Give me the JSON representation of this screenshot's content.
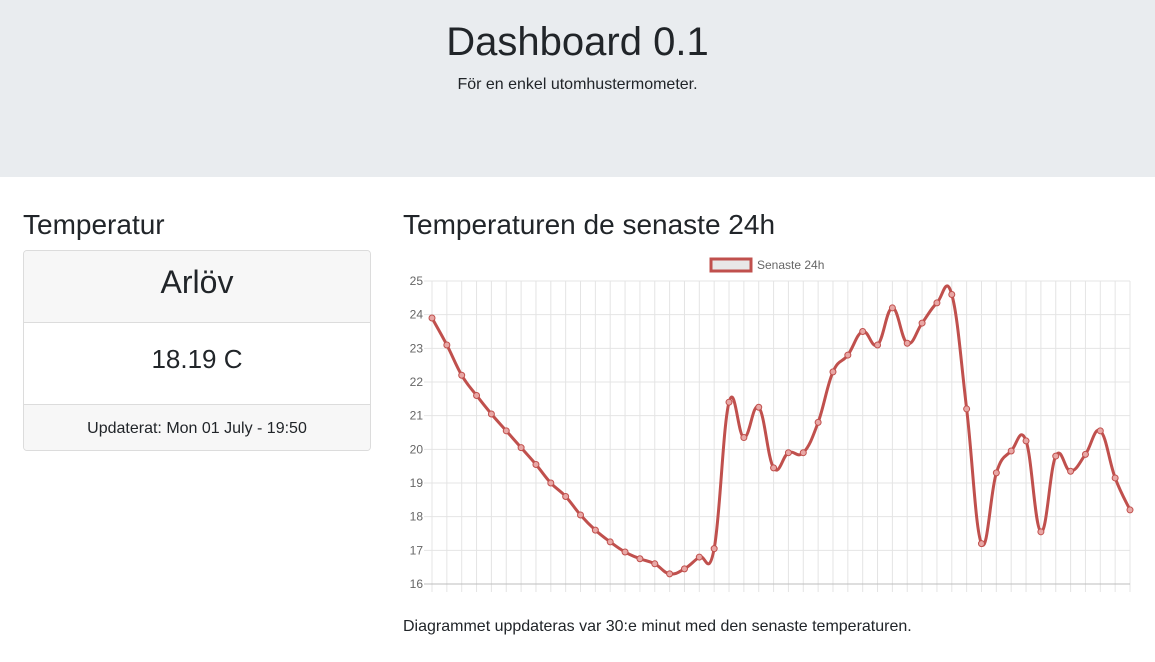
{
  "header": {
    "title": "Dashboard 0.1",
    "subtitle": "För en enkel utomhustermometer."
  },
  "left": {
    "title": "Temperatur",
    "card": {
      "location": "Arlöv",
      "temperature": "18.19 C",
      "updated": "Updaterat: Mon 01 July - 19:50"
    }
  },
  "right": {
    "title": "Temperaturen de senaste 24h",
    "note": "Diagrammet uppdateras var 30:e minut med den senaste temperaturen."
  },
  "colors": {
    "line": "#c0504d",
    "point": "#e8a7a5",
    "grid": "#e4e4e4",
    "jumbotron_bg": "#e9ecef"
  },
  "chart_data": {
    "type": "line",
    "ylim": [
      16,
      25
    ],
    "y_ticks": [
      16,
      17,
      18,
      19,
      20,
      21,
      22,
      23,
      24,
      25
    ],
    "legend": "top",
    "grid": true,
    "series": [
      {
        "name": "Senaste 24h",
        "values": [
          23.9,
          23.1,
          22.2,
          21.6,
          21.05,
          20.55,
          20.05,
          19.55,
          19.0,
          18.6,
          18.05,
          17.6,
          17.25,
          16.95,
          16.75,
          16.6,
          16.3,
          16.45,
          16.8,
          17.05,
          21.4,
          20.35,
          21.25,
          19.45,
          19.9,
          19.9,
          20.8,
          22.3,
          22.8,
          23.5,
          23.1,
          24.2,
          23.15,
          23.75,
          24.35,
          24.6,
          21.2,
          17.2,
          19.3,
          19.95,
          20.25,
          17.55,
          19.8,
          19.35,
          19.85,
          20.55,
          19.15,
          18.2
        ]
      }
    ]
  }
}
